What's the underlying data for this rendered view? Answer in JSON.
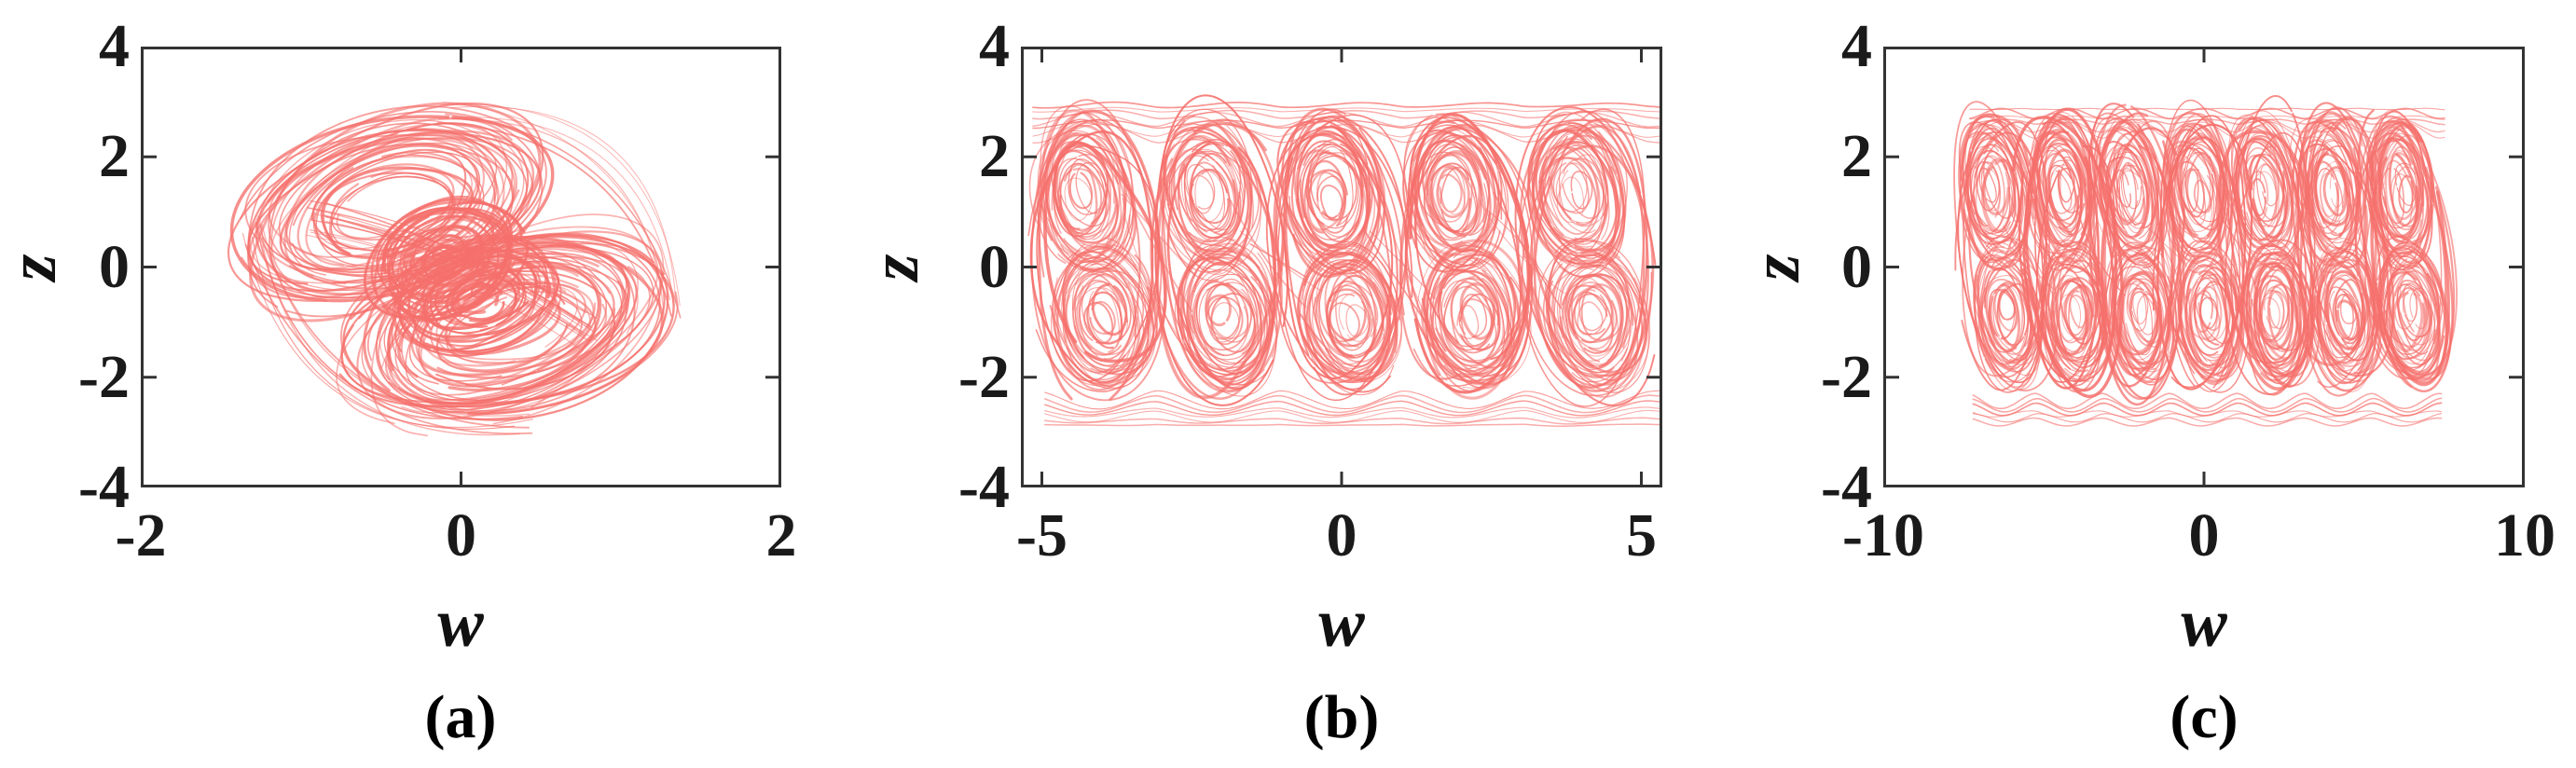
{
  "figure": {
    "background": "#ffffff",
    "curve_color": "#f5706c",
    "frame_color": "#333333",
    "label_color": "#111111"
  },
  "chart_data": [
    {
      "panel": "a",
      "caption": "(a)",
      "type": "line",
      "plot_kind": "phase-portrait",
      "xlabel": "w",
      "ylabel": "z",
      "xlim": [
        -2,
        2
      ],
      "ylim": [
        -4,
        4
      ],
      "xticks": [
        -2,
        0,
        2
      ],
      "xtick_labels": [
        "-2",
        "0",
        "2"
      ],
      "yticks": [
        4,
        2,
        0,
        -2,
        -4
      ],
      "ytick_labels": [
        "4",
        "2",
        "0",
        "-2",
        "-4"
      ],
      "description": "Double-scroll chaotic attractor in the w-z plane: two interlocked tilted scrolls centred near (-0.44, 1.08) and (0.30, -1.05); trajectory spans w in [-1.4, 1.5] and z in [-2.9, 2.9].",
      "attractor": {
        "scroll_centers": [
          [
            -0.44,
            1.08
          ],
          [
            0.3,
            -1.05
          ]
        ],
        "w_extent": [
          -1.4,
          1.5
        ],
        "z_extent": [
          -2.9,
          2.9
        ]
      },
      "render": {
        "seed": 7,
        "bias": 0.35,
        "lobes": [
          {
            "cw": -0.44,
            "cz": 1.08,
            "rw": 1.0,
            "rz": 1.58,
            "rot": -17,
            "n": 40,
            "inner": 0.34
          },
          {
            "cw": 0.3,
            "cz": -1.05,
            "rw": 1.05,
            "rz": 1.62,
            "rot": -17,
            "n": 40,
            "inner": 0.34
          },
          {
            "cw": -0.1,
            "cz": 0.15,
            "rw": 0.5,
            "rz": 1.05,
            "rot": -24,
            "n": 26,
            "inner": 0.12,
            "heavy": true
          },
          {
            "cw": 0.1,
            "cz": -0.55,
            "rw": 0.55,
            "rz": 1.0,
            "rot": -16,
            "n": 24,
            "inner": 0.12,
            "heavy": true
          }
        ],
        "links": [
          {
            "from": [
              -0.9,
              0.9
            ],
            "to": [
              0.8,
              -1.15
            ],
            "bulge": 0.06,
            "n": 12,
            "spread": 0.55
          },
          {
            "from": [
              -0.1,
              2.8
            ],
            "to": [
              1.32,
              -0.8
            ],
            "bulge": 0.28,
            "n": 7,
            "spread": 0.3
          },
          {
            "from": [
              0.4,
              -2.85
            ],
            "to": [
              -1.3,
              0.6
            ],
            "bulge": 0.28,
            "n": 7,
            "spread": 0.3
          }
        ]
      }
    },
    {
      "panel": "b",
      "caption": "(b)",
      "type": "line",
      "plot_kind": "phase-portrait",
      "xlabel": "w",
      "ylabel": "z",
      "xlim": [
        -5.35,
        5.35
      ],
      "ylim": [
        -4,
        4
      ],
      "xticks": [
        -5,
        0,
        5
      ],
      "xtick_labels": [
        "-5",
        "0",
        "5"
      ],
      "yticks": [
        4,
        2,
        0,
        -2,
        -4
      ],
      "ytick_labels": [
        "4",
        "2",
        "0",
        "-2",
        "-4"
      ],
      "description": "Multi-scroll chaotic attractor with 5 double-scroll columns at w = -4.1, -2.05, 0, 2.05, 4.1, linked by sweeping orbits along z = +2.9 and z = -2.8; z in [-2.9, 3.0].",
      "attractor": {
        "scroll_columns": [
          -4.1,
          -2.05,
          0,
          2.05,
          4.1
        ],
        "w_extent": [
          -5.3,
          5.3
        ],
        "z_extent": [
          -2.9,
          3.0
        ]
      },
      "render": {
        "seed": 11,
        "bias": 0,
        "columns": [
          -4.1,
          -2.05,
          0,
          2.05,
          4.1
        ],
        "unit_lobes": [
          {
            "dw": -0.18,
            "dz": 1.32,
            "rw": 0.82,
            "rz": 1.45,
            "rot": -8,
            "n": 30,
            "inner": 0.22
          },
          {
            "dw": 0.14,
            "dz": -0.9,
            "rw": 0.85,
            "rz": 1.35,
            "rot": -8,
            "n": 30,
            "inner": 0.22
          },
          {
            "dw": 0.0,
            "dz": 0.2,
            "rw": 1.1,
            "rz": 2.6,
            "rot": -4,
            "n": 7,
            "inner": 0.8,
            "heavy": true
          }
        ],
        "bands": [
          {
            "z0": 2.92,
            "dz": -0.09,
            "n": 7,
            "amp": 0.28,
            "x1": -5.15,
            "x2": 5.3,
            "dir": 1
          },
          {
            "z0": -2.85,
            "dz": 0.08,
            "n": 7,
            "amp": 0.26,
            "x1": -4.95,
            "x2": 5.3,
            "dir": -1
          }
        ],
        "stitch": {
          "n": 3,
          "from_dw": 0.45,
          "to_dw": -0.4,
          "from_dz": [
            0.4,
            2.0
          ],
          "to_dz": [
            -1.6,
            0.2
          ]
        }
      }
    },
    {
      "panel": "c",
      "caption": "(c)",
      "type": "line",
      "plot_kind": "phase-portrait",
      "xlabel": "w",
      "ylabel": "z",
      "xlim": [
        -10,
        10
      ],
      "ylim": [
        -4,
        4
      ],
      "xticks": [
        -10,
        0,
        10
      ],
      "xtick_labels": [
        "-10",
        "0",
        "10"
      ],
      "yticks": [
        4,
        2,
        0,
        -2,
        -4
      ],
      "ytick_labels": [
        "4",
        "2",
        "0",
        "-2",
        "-4"
      ],
      "description": "Multi-scroll chaotic attractor with 7 double-scroll columns at w = -6.3, -4.2, -2.1, 0, 2.1, 4.2, 6.3, linked by sweeping orbits near z = +2.85 and z = -2.8; z in [-2.9, 2.95].",
      "attractor": {
        "scroll_columns": [
          -6.3,
          -4.2,
          -2.1,
          0,
          2.1,
          4.2,
          6.3
        ],
        "w_extent": [
          -7.3,
          7.5
        ],
        "z_extent": [
          -2.9,
          2.95
        ]
      },
      "render": {
        "seed": 13,
        "bias": 0,
        "columns": [
          -6.3,
          -4.2,
          -2.1,
          0,
          2.1,
          4.2,
          6.3
        ],
        "unit_lobes": [
          {
            "dw": -0.22,
            "dz": 1.38,
            "rw": 1.02,
            "rz": 1.4,
            "rot": -6,
            "n": 28,
            "inner": 0.22
          },
          {
            "dw": 0.18,
            "dz": -0.85,
            "rw": 1.05,
            "rz": 1.3,
            "rot": -6,
            "n": 28,
            "inner": 0.22
          },
          {
            "dw": 0.0,
            "dz": 0.25,
            "rw": 1.42,
            "rz": 2.55,
            "rot": -3,
            "n": 6,
            "inner": 0.82,
            "heavy": true
          }
        ],
        "bands": [
          {
            "z0": 2.85,
            "dz": -0.08,
            "n": 6,
            "amp": 0.22,
            "x1": -7.3,
            "x2": 7.5,
            "dir": 1
          },
          {
            "z0": -2.8,
            "dz": 0.08,
            "n": 6,
            "amp": 0.2,
            "x1": -7.2,
            "x2": 7.4,
            "dir": -1
          }
        ],
        "stitch": {
          "n": 3,
          "from_dw": 0.5,
          "to_dw": -0.45,
          "from_dz": [
            0.4,
            2.0
          ],
          "to_dz": [
            -1.5,
            0.3
          ]
        }
      }
    }
  ]
}
